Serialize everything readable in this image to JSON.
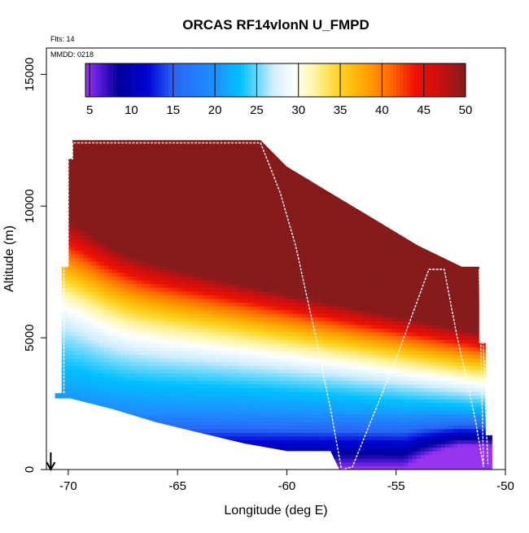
{
  "chart_data": {
    "type": "heatmap",
    "title": "ORCAS RF14vlonN U_FMPD",
    "flights_note": "Flts: 14",
    "date_note": "MMDD: 0218",
    "xlabel": "Longitude (deg E)",
    "ylabel": "Altitude (m)",
    "xlim": [
      -71,
      -50
    ],
    "ylim": [
      0,
      16000
    ],
    "x_ticks": [
      -70,
      -65,
      -60,
      -55,
      -50
    ],
    "y_ticks": [
      0,
      5000,
      10000,
      15000
    ],
    "colorbar": {
      "range": [
        4.5,
        50
      ],
      "ticks": [
        5,
        10,
        15,
        20,
        25,
        30,
        35,
        40,
        45,
        50
      ],
      "stops": [
        {
          "v": 4.5,
          "c": "#9a35f0"
        },
        {
          "v": 6.5,
          "c": "#4a17d2"
        },
        {
          "v": 8.5,
          "c": "#00009a"
        },
        {
          "v": 12,
          "c": "#0005d6"
        },
        {
          "v": 15,
          "c": "#2966f5"
        },
        {
          "v": 20,
          "c": "#1e90ff"
        },
        {
          "v": 23,
          "c": "#00c0ff"
        },
        {
          "v": 27,
          "c": "#cfeeff"
        },
        {
          "v": 29.5,
          "c": "#ffffff"
        },
        {
          "v": 32,
          "c": "#fff4a0"
        },
        {
          "v": 35,
          "c": "#ffd21e"
        },
        {
          "v": 38,
          "c": "#ffa500"
        },
        {
          "v": 41,
          "c": "#ff6a00"
        },
        {
          "v": 44,
          "c": "#ee1100"
        },
        {
          "v": 47,
          "c": "#c81010"
        },
        {
          "v": 50,
          "c": "#801c1c"
        }
      ]
    },
    "field_outline": {
      "top": [
        [
          -70.1,
          12500
        ],
        [
          -61.2,
          12500
        ],
        [
          -60.0,
          11500
        ],
        [
          -58.0,
          10500
        ],
        [
          -56.0,
          9500
        ],
        [
          -54.0,
          8500
        ],
        [
          -52.0,
          7700
        ],
        [
          -51.2,
          7700
        ]
      ],
      "right": [
        [
          -51.2,
          7700
        ],
        [
          -51.2,
          4800
        ],
        [
          -50.9,
          4800
        ],
        [
          -50.9,
          1300
        ],
        [
          -50.6,
          1300
        ],
        [
          -50.6,
          0
        ]
      ],
      "bottom": [
        [
          -50.6,
          0
        ],
        [
          -57.6,
          0
        ],
        [
          -58.0,
          700
        ],
        [
          -60.0,
          700
        ],
        [
          -62.0,
          1000
        ],
        [
          -64.0,
          1400
        ],
        [
          -66.0,
          1800
        ],
        [
          -68.0,
          2300
        ],
        [
          -69.9,
          2700
        ],
        [
          -70.6,
          2700
        ]
      ],
      "left": [
        [
          -70.6,
          2700
        ],
        [
          -70.6,
          2900
        ],
        [
          -70.3,
          2900
        ],
        [
          -70.3,
          7700
        ],
        [
          -70.0,
          7700
        ],
        [
          -70.0,
          11800
        ],
        [
          -69.8,
          11800
        ],
        [
          -69.8,
          12500
        ]
      ]
    },
    "flight_track": {
      "color": "#ffffff",
      "points": [
        [
          -70.2,
          2900
        ],
        [
          -70.2,
          7700
        ],
        [
          -70.0,
          7700
        ],
        [
          -70.0,
          11800
        ],
        [
          -69.8,
          11800
        ],
        [
          -69.8,
          12400
        ],
        [
          -61.2,
          12400
        ],
        [
          -60.3,
          10500
        ],
        [
          -59.6,
          8500
        ],
        [
          -58.8,
          5500
        ],
        [
          -58.0,
          2300
        ],
        [
          -57.5,
          0
        ],
        [
          -57.0,
          100
        ],
        [
          -55.0,
          4200
        ],
        [
          -53.5,
          7600
        ],
        [
          -52.8,
          7600
        ],
        [
          -52.2,
          5000
        ],
        [
          -51.4,
          2000
        ],
        [
          -51.0,
          100
        ],
        [
          -51.2,
          7600
        ],
        [
          -51.0,
          4500
        ],
        [
          -50.8,
          200
        ]
      ]
    },
    "arrow_marker": {
      "x": -70.8,
      "note": "position indicator near origin"
    }
  }
}
